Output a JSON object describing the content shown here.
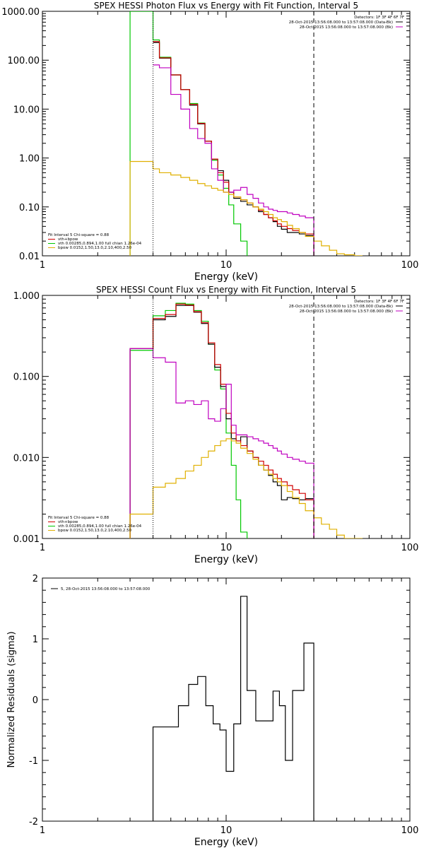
{
  "colors": {
    "data": "#000000",
    "total": "#d00000",
    "vth": "#00c800",
    "bpow": "#e0b000",
    "bk": "#c000c0",
    "axis": "#000000"
  },
  "panels": [
    {
      "id": "photon",
      "title": "SPEX HESSI Photon Flux vs Energy with Fit Function, Interval 5",
      "xlabel": "Energy (keV)",
      "ylabel": "",
      "xrange": [
        1,
        100
      ],
      "yrange": [
        0.01,
        1000
      ],
      "xticks": [
        "1",
        "10",
        "100"
      ],
      "yticks": [
        "0.01",
        "0.10",
        "1.00",
        "10.00",
        "100.00",
        "1000.00"
      ],
      "info_lines": [
        "Detectors: 1F 3F 4F 6F 7F",
        "28-Oct-2015 13:56:08.000 to 13:57:08.000 (Data-Bk)",
        "28-Oct-2015 13:56:08.000 to 13:57:08.000 (Bk)"
      ],
      "legend_title": "Fit Interval 5   Chi-square = 0.88",
      "legend": [
        {
          "color": "total",
          "label": "vth+bpow"
        },
        {
          "color": "vth",
          "label": "vth 0.00285,0.894,1.00  full chian 1.26e-04"
        },
        {
          "color": "bpow",
          "label": "bpow 0.0152,1.50,13.0,2.10,400,2.50"
        }
      ],
      "vlines": [
        4,
        30
      ],
      "bins": [
        3.0,
        3.333,
        4.0,
        4.333,
        5.0,
        5.667,
        6.333,
        7.0,
        7.667,
        8.333,
        9.0,
        9.667,
        10.333,
        11.0,
        12.0,
        13.0,
        14.0,
        15.0,
        16.0,
        17.0,
        18.0,
        19.0,
        20.0,
        21.5,
        23.0,
        25.0,
        27.0,
        30.0,
        33.0,
        36.5,
        40.0,
        44.0,
        50.0,
        55.0
      ],
      "series": [
        {
          "color": "vth",
          "values": [
            1000,
            1000,
            260,
            115,
            50,
            25,
            13,
            5.2,
            2.2,
            0.9,
            0.45,
            0.24,
            0.11,
            0.045,
            0.02,
            0.005
          ]
        },
        {
          "color": "data",
          "values": [
            null,
            null,
            230,
            110,
            50,
            25,
            12,
            5.0,
            2.2,
            0.95,
            0.55,
            0.35,
            0.2,
            0.15,
            0.13,
            0.11,
            0.1,
            0.08,
            0.07,
            0.06,
            0.05,
            0.04,
            0.035,
            0.03,
            0.03,
            0.028,
            0.026
          ]
        },
        {
          "color": "total",
          "values": [
            null,
            null,
            240,
            112,
            50,
            25,
            12.5,
            5.1,
            2.2,
            0.95,
            0.5,
            0.32,
            0.2,
            0.16,
            0.14,
            0.12,
            0.1,
            0.085,
            0.07,
            0.06,
            0.052,
            0.045,
            0.04,
            0.036,
            0.033,
            0.03,
            0.028
          ]
        },
        {
          "color": "bk",
          "values": [
            null,
            null,
            80,
            70,
            20,
            10,
            4,
            2.5,
            2.0,
            0.6,
            0.35,
            0.2,
            0.2,
            0.22,
            0.25,
            0.18,
            0.15,
            0.12,
            0.1,
            0.09,
            0.085,
            0.08,
            0.08,
            0.075,
            0.07,
            0.065,
            0.06
          ]
        },
        {
          "color": "bpow",
          "values": [
            0.85,
            0.85,
            0.6,
            0.5,
            0.45,
            0.4,
            0.35,
            0.3,
            0.27,
            0.24,
            0.22,
            0.2,
            0.18,
            0.16,
            0.14,
            0.12,
            0.1,
            0.09,
            0.08,
            0.07,
            0.06,
            0.055,
            0.05,
            0.042,
            0.036,
            0.03,
            0.025,
            0.02,
            0.016,
            0.013,
            0.011,
            0.0105,
            0.01
          ]
        }
      ]
    },
    {
      "id": "count",
      "title": "SPEX HESSI Count Flux vs Energy with Fit Function, Interval 5",
      "xlabel": "Energy (keV)",
      "ylabel": "",
      "xrange": [
        1,
        100
      ],
      "yrange": [
        0.001,
        1
      ],
      "xticks": [
        "1",
        "10",
        "100"
      ],
      "yticks": [
        "0.001",
        "0.010",
        "0.100",
        "1.000"
      ],
      "info_lines": [
        "Detectors: 1F 3F 4F 6F 7F",
        "28-Oct-2015 13:56:08.000 to 13:57:08.000 (Data-Bk)",
        "28-Oct-2015 13:56:08.000 to 13:57:08.000 (Bk)"
      ],
      "legend_title": "Fit Interval 5   Chi-square = 0.88",
      "legend": [
        {
          "color": "total",
          "label": "vth+bpow"
        },
        {
          "color": "vth",
          "label": "vth 0.00285,0.894,1.00  full chian 1.26e-04"
        },
        {
          "color": "bpow",
          "label": "bpow 0.0152,1.50,13.0,2.10,400,2.50"
        }
      ],
      "vlines": [
        4,
        30
      ],
      "bins": [
        3.0,
        4.0,
        4.667,
        5.333,
        6.0,
        6.667,
        7.333,
        8.0,
        8.667,
        9.333,
        10.0,
        10.667,
        11.333,
        12.0,
        13.0,
        14.0,
        15.0,
        16.0,
        17.0,
        18.0,
        19.0,
        20.0,
        21.5,
        23.0,
        25.0,
        27.0,
        30.0,
        33.0,
        36.5,
        40.0,
        44.0,
        50.0,
        55.0
      ],
      "series": [
        {
          "color": "vth",
          "values": [
            0.21,
            0.56,
            0.65,
            0.8,
            0.78,
            0.65,
            0.48,
            0.25,
            0.12,
            0.07,
            0.02,
            0.008,
            0.003,
            0.0012
          ]
        },
        {
          "color": "data",
          "values": [
            0.22,
            0.5,
            0.55,
            0.75,
            0.75,
            0.62,
            0.45,
            0.25,
            0.13,
            0.075,
            0.03,
            0.017,
            0.016,
            0.018,
            0.012,
            0.01,
            0.008,
            0.007,
            0.006,
            0.005,
            0.0045,
            0.003,
            0.0032,
            0.0031,
            0.003,
            0.0031
          ]
        },
        {
          "color": "total",
          "values": [
            0.22,
            0.52,
            0.58,
            0.78,
            0.76,
            0.63,
            0.46,
            0.26,
            0.14,
            0.08,
            0.035,
            0.02,
            0.016,
            0.014,
            0.012,
            0.01,
            0.009,
            0.008,
            0.007,
            0.0062,
            0.0055,
            0.005,
            0.0045,
            0.004,
            0.0036,
            0.003
          ]
        },
        {
          "color": "bk",
          "values": [
            0.22,
            0.17,
            0.15,
            0.047,
            0.05,
            0.045,
            0.05,
            0.03,
            0.028,
            0.04,
            0.08,
            0.025,
            0.019,
            0.019,
            0.018,
            0.017,
            0.016,
            0.015,
            0.014,
            0.013,
            0.012,
            0.011,
            0.01,
            0.0095,
            0.009,
            0.0085
          ]
        },
        {
          "color": "bpow",
          "values": [
            0.002,
            0.0043,
            0.0048,
            0.0055,
            0.0068,
            0.008,
            0.01,
            0.012,
            0.014,
            0.016,
            0.017,
            0.016,
            0.015,
            0.013,
            0.0112,
            0.0095,
            0.008,
            0.007,
            0.0062,
            0.0055,
            0.005,
            0.0045,
            0.0038,
            0.0032,
            0.0027,
            0.0022,
            0.0018,
            0.0015,
            0.0013,
            0.0011,
            0.001,
            0.001
          ]
        }
      ]
    }
  ],
  "residuals": {
    "ylabel": "Normalized Residuals (sigma)",
    "xlabel": "Energy (keV)",
    "xrange": [
      1,
      100
    ],
    "yrange": [
      -2,
      2
    ],
    "xticks": [
      "1",
      "10",
      "100"
    ],
    "yticks": [
      "-2",
      "-1",
      "0",
      "1",
      "2"
    ],
    "legend": "5, 28-Oct-2015 13:56:08.000 to 13:57:08.000",
    "bins": [
      4.0,
      4.75,
      5.5,
      6.25,
      7.0,
      7.75,
      8.5,
      9.25,
      10.0,
      11.0,
      12.0,
      13.0,
      14.5,
      16.0,
      18.0,
      19.5,
      21.0,
      23.0,
      26.5,
      30.0
    ],
    "values": [
      -0.45,
      -0.45,
      -0.1,
      0.25,
      0.38,
      -0.1,
      -0.4,
      -0.5,
      -1.18,
      -0.4,
      1.7,
      0.15,
      -0.35,
      -0.35,
      0.14,
      -0.1,
      -1.0,
      0.15,
      0.93
    ]
  },
  "chart_data": [
    {
      "type": "line",
      "title": "SPEX HESSI Photon Flux vs Energy with Fit Function, Interval 5",
      "xlabel": "Energy (keV)",
      "ylabel": "",
      "xscale": "log",
      "yscale": "log",
      "xlim": [
        1,
        100
      ],
      "ylim": [
        0.01,
        1000
      ],
      "legend_position": "bottom-left",
      "series_names": [
        "vth+bpow",
        "vth 0.00285,0.894,1.00  full chian 1.26e-04",
        "bpow 0.0152,1.50,13.0,2.10,400,2.50"
      ]
    },
    {
      "type": "line",
      "title": "SPEX HESSI Count Flux vs Energy with Fit Function, Interval 5",
      "xlabel": "Energy (keV)",
      "ylabel": "",
      "xscale": "log",
      "yscale": "log",
      "xlim": [
        1,
        100
      ],
      "ylim": [
        0.001,
        1
      ],
      "legend_position": "bottom-left",
      "series_names": [
        "vth+bpow",
        "vth 0.00285,0.894,1.00  full chian 1.26e-04",
        "bpow 0.0152,1.50,13.0,2.10,400,2.50"
      ]
    },
    {
      "type": "line",
      "title": "",
      "xlabel": "Energy (keV)",
      "ylabel": "Normalized Residuals (sigma)",
      "xscale": "log",
      "xlim": [
        1,
        100
      ],
      "ylim": [
        -2,
        2
      ],
      "legend_position": "top-left"
    }
  ]
}
